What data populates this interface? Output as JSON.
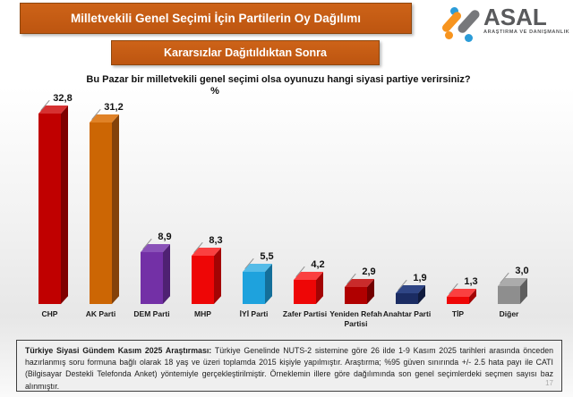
{
  "header": {
    "title": "Milletvekili Genel Seçimi İçin Partilerin Oy Dağılımı",
    "subtitle": "Kararsızlar Dağıtıldıktan Sonra",
    "accent_color": "#C45B13"
  },
  "logo": {
    "name": "ASAL",
    "tagline": "ARAŞTIRMA VE DANIŞMANLIK",
    "colors": {
      "orange": "#F7941E",
      "blue": "#2B9CD8",
      "gray": "#77787B",
      "text": "#595A5C"
    }
  },
  "question": "Bu Pazar bir milletvekili genel seçimi olsa oyunuzu hangi siyasi partiye verirsiniz?",
  "chart_data": {
    "type": "bar",
    "style": "3d-column",
    "unit_label": "%",
    "categories": [
      "CHP",
      "AK Parti",
      "DEM Parti",
      "MHP",
      "İYİ Parti",
      "Zafer Partisi",
      "Yeniden Refah Partisi",
      "Anahtar Parti",
      "TİP",
      "Diğer"
    ],
    "values": [
      32.8,
      31.2,
      8.9,
      8.3,
      5.5,
      4.2,
      2.9,
      1.9,
      1.3,
      3.0
    ],
    "values_display": [
      "32,8",
      "31,2",
      "8,9",
      "8,3",
      "5,5",
      "4,2",
      "2,9",
      "1,9",
      "1,3",
      "3,0"
    ],
    "colors": [
      {
        "front": "#C00000",
        "side": "#7F0000",
        "top": "#D63131"
      },
      {
        "front": "#CC6604",
        "side": "#84420A",
        "top": "#E08227"
      },
      {
        "front": "#7330A6",
        "side": "#4F2173",
        "top": "#8A52B8"
      },
      {
        "front": "#EE0606",
        "side": "#A30404",
        "top": "#FA4040"
      },
      {
        "front": "#1EA2DD",
        "side": "#146F99",
        "top": "#55BCE8"
      },
      {
        "front": "#EE0606",
        "side": "#A30404",
        "top": "#FA4040"
      },
      {
        "front": "#B00000",
        "side": "#720000",
        "top": "#C92B2B"
      },
      {
        "front": "#1B2C63",
        "side": "#101B3E",
        "top": "#2F4585"
      },
      {
        "front": "#EE0606",
        "side": "#A30404",
        "top": "#FA4040"
      },
      {
        "front": "#8E8E8E",
        "side": "#5E5E5E",
        "top": "#ABABAB"
      }
    ],
    "ylim": [
      0,
      35
    ],
    "grid": false,
    "legend": "none",
    "data_labels": "above-bars"
  },
  "footer": {
    "lead": "Türkiye Siyasi Gündem Kasım 2025 Araştırması:",
    "body": " Türkiye Genelinde NUTS-2 sistemine göre 26 ilde 1-9 Kasım 2025 tarihleri arasında önceden hazırlanmış soru formuna bağlı olarak 18 yaş ve üzeri toplamda 2015 kişiyle yapılmıştır. Araştırma; %95 güven sınırında +/- 2.5 hata payı ile CATI (Bilgisayar Destekli Telefonda Anket) yöntemiyle gerçekleştirilmiştir. Örneklemin illere göre dağılımında son genel seçimlerdeki seçmen sayısı baz alınmıştır.",
    "page_number": "17"
  }
}
